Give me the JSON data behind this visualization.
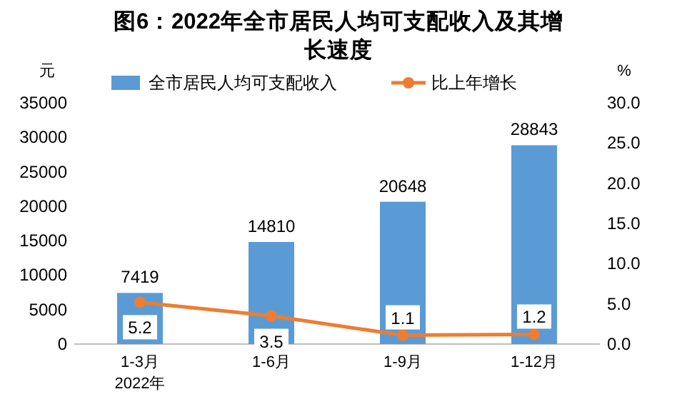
{
  "chart_data": {
    "type": "bar",
    "title": "图6：2022年全市居民人均可支配收入及其增长速度",
    "ylabel": "元",
    "y2label": "%",
    "categories": [
      "1-3月",
      "1-6月",
      "1-9月",
      "1-12月"
    ],
    "series": [
      {
        "name": "全市居民人均可支配收入",
        "color": "#5b9bd5",
        "values": [
          7419,
          14810,
          20648,
          28843
        ]
      },
      {
        "name": "比上年增长",
        "type": "line",
        "axis": "y2",
        "color": "#ed7d31",
        "marker": "circle",
        "values": [
          5.2,
          3.5,
          1.1,
          1.2
        ]
      }
    ],
    "ylim": [
      0,
      35000
    ],
    "yticks": [
      0,
      5000,
      10000,
      15000,
      20000,
      25000,
      30000,
      35000
    ],
    "y2lim": [
      0,
      30
    ],
    "y2ticks": [
      {
        "value": 0,
        "label": "0.0"
      },
      {
        "value": 5,
        "label": "5.0"
      },
      {
        "value": 10,
        "label": "10.0"
      },
      {
        "value": 15,
        "label": "15.0"
      },
      {
        "value": 20,
        "label": "20.0"
      },
      {
        "value": 25,
        "label": "25.0"
      },
      {
        "value": 30,
        "label": "30.0"
      }
    ],
    "data_labels": true,
    "legend": "top",
    "grid": false,
    "annotations": [
      "2022年"
    ]
  }
}
